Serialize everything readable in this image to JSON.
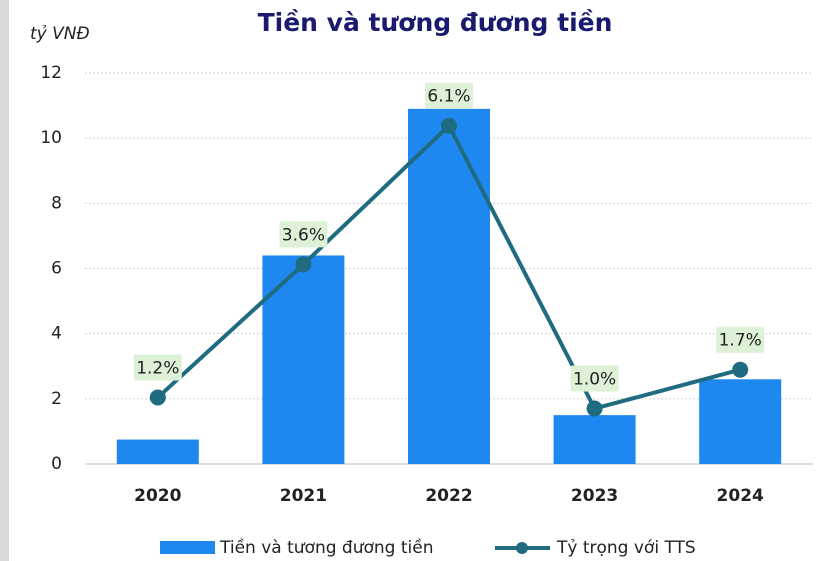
{
  "chart_data": {
    "type": "bar_line",
    "title": "Tiền và tương đương tiền",
    "y_label": "tỷ VNĐ",
    "categories": [
      "2020",
      "2021",
      "2022",
      "2023",
      "2024"
    ],
    "series": [
      {
        "name": "Tiền và tương đương tiền",
        "type": "bar",
        "color": "#1e88f0",
        "values": [
          0.75,
          6.4,
          10.9,
          1.5,
          2.6
        ]
      },
      {
        "name": "Tỷ trọng với TTS",
        "type": "line",
        "axis": "y2",
        "color": "#1f6b80",
        "values": [
          1.2,
          3.6,
          6.1,
          1.0,
          1.7
        ],
        "value_labels": [
          "1.2%",
          "3.6%",
          "6.1%",
          "1.0%",
          "1.7%"
        ]
      }
    ],
    "ylim": [
      0,
      12
    ],
    "yticks": [
      0,
      2,
      4,
      6,
      8,
      10,
      12
    ],
    "y2lim": [
      0,
      7.05
    ],
    "grid": true,
    "legend": "bottom"
  }
}
